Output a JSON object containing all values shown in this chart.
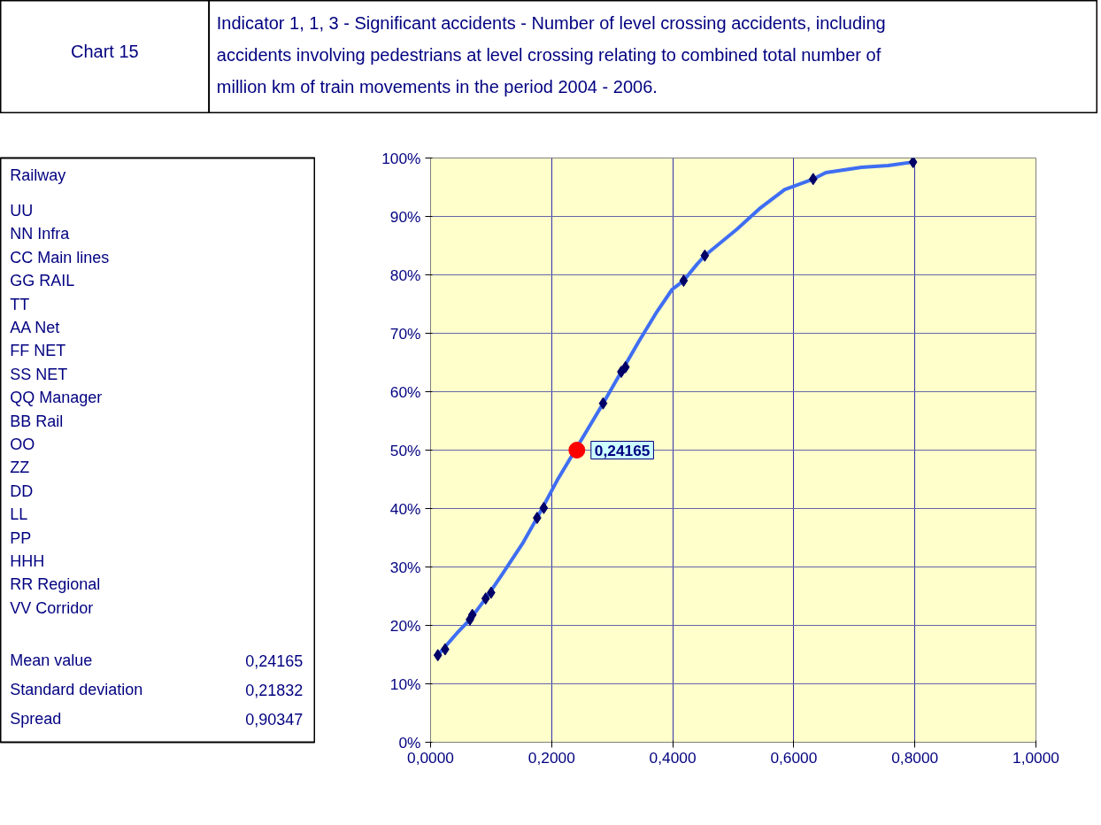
{
  "chart_data": {
    "type": "line",
    "title": "Indicator 1, 1, 3 - Significant accidents - Number of level crossing accidents, including accidents involving pedestrians at level crossing relating to combined total  number of million km of train movements in the period 2004 - 2006.",
    "annotations": [
      "Chart 15",
      "Railway",
      "UU",
      "NN Infra",
      "CC Main lines",
      "GG RAIL",
      "TT",
      "AA Net",
      "FF NET",
      "SS NET",
      "QQ Manager",
      "BB Rail",
      "OO",
      "ZZ",
      "DD",
      "LL",
      "PP",
      "HHH",
      "RR Regional",
      "VV Corridor",
      "Mean value",
      "0,24165",
      "Standard deviation",
      "0,21832",
      "Spread",
      "0,90347",
      {
        "text": "0,24165",
        "x": 0.24165,
        "y": 50
      }
    ],
    "series": [
      {
        "color": "#3f6ef2",
        "x": [
          0.012,
          0.043,
          0.065,
          0.091,
          0.116,
          0.153,
          0.176,
          0.209,
          0.285,
          0.315,
          0.344,
          0.374,
          0.399,
          0.418,
          0.44,
          0.453,
          0.506,
          0.543,
          0.585,
          0.632,
          0.653,
          0.712,
          0.756,
          0.797
        ],
        "values": [
          14.9,
          18.6,
          21.0,
          24.6,
          28.4,
          34.2,
          38.4,
          44.8,
          58.0,
          63.4,
          68.6,
          73.7,
          77.5,
          79.0,
          81.8,
          83.3,
          87.8,
          91.3,
          94.6,
          96.4,
          97.5,
          98.4,
          98.7,
          99.3
        ]
      },
      {
        "type": "scatter",
        "marker": "diamond",
        "color": "#000066",
        "x": [
          0.012,
          0.024,
          0.065,
          0.069,
          0.091,
          0.1,
          0.176,
          0.187,
          0.285,
          0.315,
          0.322,
          0.418,
          0.453,
          0.632,
          0.797
        ],
        "values": [
          14.9,
          15.9,
          21.0,
          21.8,
          24.6,
          25.6,
          38.4,
          40.1,
          58.0,
          63.4,
          64.2,
          79.0,
          83.3,
          96.4,
          99.3
        ]
      },
      {
        "type": "scatter",
        "marker": "circle",
        "color": "#ff0000",
        "x": [
          0.24165
        ],
        "values": [
          50
        ]
      }
    ],
    "xlim": [
      0,
      1.0
    ],
    "ylim": [
      0,
      100
    ],
    "xticks": [
      {
        "value": 0,
        "label": "0,0000"
      },
      {
        "value": 0.2,
        "label": "0,2000"
      },
      {
        "value": 0.4,
        "label": "0,4000"
      },
      {
        "value": 0.6,
        "label": "0,6000"
      },
      {
        "value": 0.8,
        "label": "0,8000"
      },
      {
        "value": 1.0,
        "label": "1,0000"
      }
    ],
    "yticks": [
      {
        "value": 0,
        "label": "0%"
      },
      {
        "value": 10,
        "label": "10%"
      },
      {
        "value": 20,
        "label": "20%"
      },
      {
        "value": 30,
        "label": "30%"
      },
      {
        "value": 40,
        "label": "40%"
      },
      {
        "value": 50,
        "label": "50%"
      },
      {
        "value": 60,
        "label": "60%"
      },
      {
        "value": 70,
        "label": "70%"
      },
      {
        "value": 80,
        "label": "80%"
      },
      {
        "value": 90,
        "label": "90%"
      },
      {
        "value": 100,
        "label": "100%"
      }
    ],
    "grid": true
  }
}
